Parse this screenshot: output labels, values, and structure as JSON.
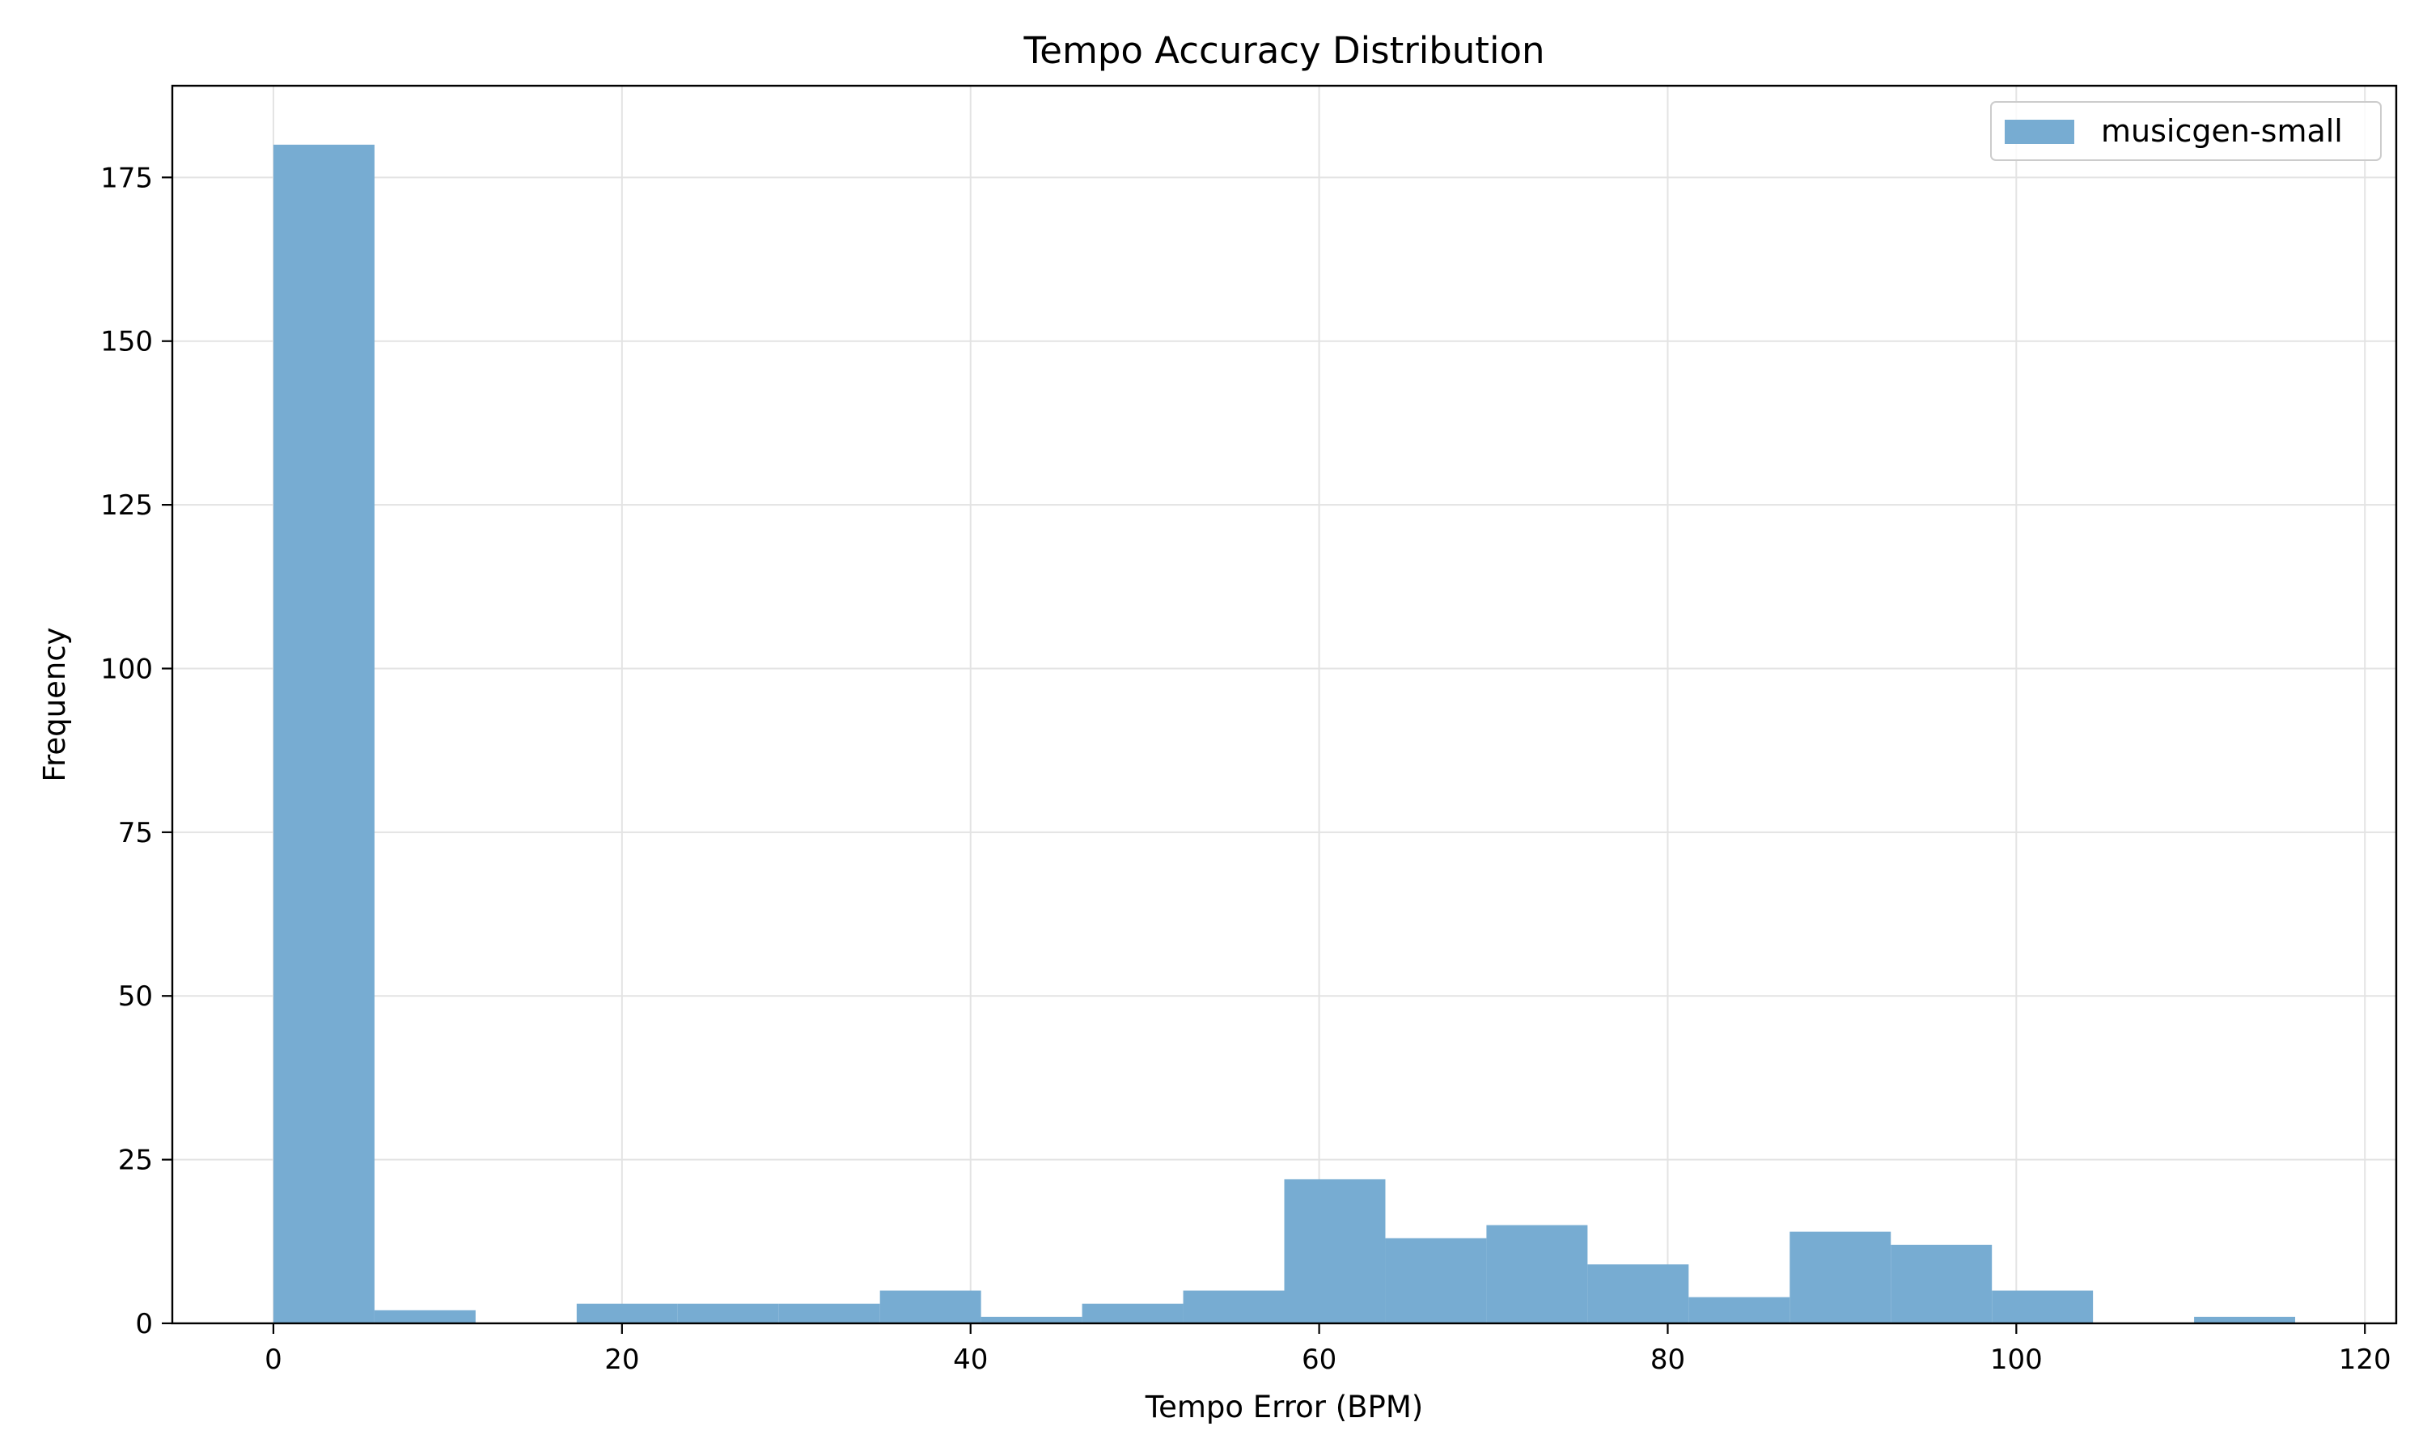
{
  "chart_data": {
    "type": "bar",
    "title": "Tempo Accuracy Distribution",
    "xlabel": "Tempo Error (BPM)",
    "ylabel": "Frequency",
    "bin_edges": [
      0,
      5.8,
      11.6,
      17.4,
      23.2,
      29.0,
      34.8,
      40.6,
      46.4,
      52.2,
      58.0,
      63.8,
      69.6,
      75.4,
      81.2,
      87.0,
      92.8,
      98.6,
      104.4,
      110.2,
      116.0
    ],
    "series": [
      {
        "name": "musicgen-small",
        "values": [
          180,
          2,
          0,
          3,
          3,
          3,
          5,
          1,
          3,
          5,
          22,
          13,
          15,
          9,
          4,
          14,
          12,
          5,
          0,
          1
        ]
      }
    ],
    "xlim": [
      -5.8,
      121.8
    ],
    "ylim": [
      0,
      189
    ],
    "xticks": [
      0,
      20,
      40,
      60,
      80,
      100,
      120
    ],
    "yticks": [
      0,
      25,
      50,
      75,
      100,
      125,
      150,
      175
    ],
    "grid": true,
    "legend_position": "top-right",
    "bar_color": "#77acd2"
  }
}
